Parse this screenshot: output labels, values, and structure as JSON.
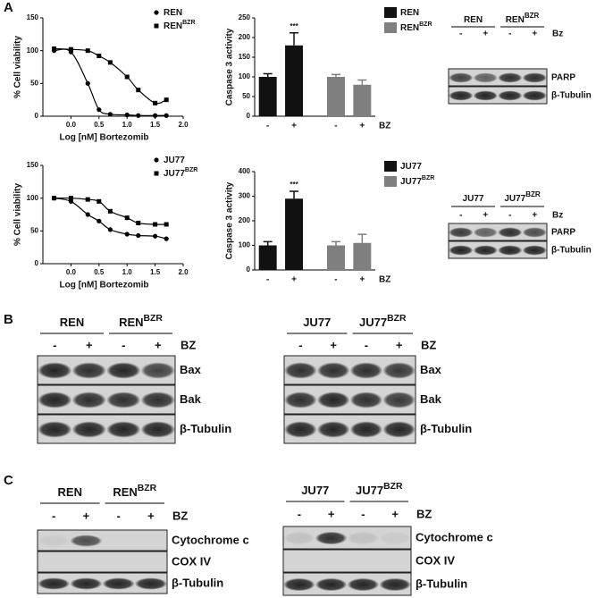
{
  "panel_labels": [
    "A",
    "B",
    "C"
  ],
  "chart_data": [
    {
      "type": "scatter",
      "fit": true,
      "xlabel": "Log [nM] Bortezomib",
      "ylabel": "% Cell viability",
      "xlim": [
        -0.5,
        2.0
      ],
      "xticks": [
        {
          "value": 0,
          "label": "0.0"
        },
        {
          "value": 0.5,
          "label": "0.5"
        },
        {
          "value": 1,
          "label": "1.0"
        },
        {
          "value": 1.5,
          "label": "1.5"
        },
        {
          "value": 2,
          "label": "2.0"
        }
      ],
      "ylim": [
        0,
        150
      ],
      "yticks": [
        0,
        50,
        100,
        150
      ],
      "x": [
        -0.3,
        0.0,
        0.3,
        0.5,
        0.7,
        1.0,
        1.2,
        1.5,
        1.7
      ],
      "series": [
        {
          "name": "REN",
          "marker": "circle",
          "color": "#000000",
          "values": [
            100,
            98,
            50,
            10,
            3,
            2,
            1,
            1,
            1
          ]
        },
        {
          "name": "REN",
          "superscript": "BZR",
          "marker": "square",
          "color": "#000000",
          "values": [
            103,
            102,
            100,
            92,
            82,
            60,
            40,
            20,
            25
          ]
        }
      ]
    },
    {
      "type": "bar",
      "ylabel": "Caspase 3 activity",
      "treatment_label": "BZ",
      "annotation": "***",
      "categories": [
        "-",
        "+",
        "-",
        "+"
      ],
      "ylim": [
        0,
        250
      ],
      "yticks": [
        0,
        50,
        100,
        150,
        200,
        250
      ],
      "series": [
        {
          "name": "REN",
          "color": "#111111",
          "values": [
            100,
            180,
            null,
            null
          ],
          "errors": [
            8,
            32,
            null,
            null
          ]
        },
        {
          "name": "REN",
          "superscript": "BZR",
          "color": "#7f7f7f",
          "values": [
            null,
            null,
            100,
            80
          ],
          "errors": [
            null,
            null,
            6,
            12
          ]
        }
      ]
    },
    {
      "type": "scatter",
      "fit": true,
      "xlabel": "Log [nM] Bortezomib",
      "ylabel": "% Cell viability",
      "xlim": [
        -0.5,
        2.0
      ],
      "xticks": [
        {
          "value": 0,
          "label": "0.0"
        },
        {
          "value": 0.5,
          "label": "0.5"
        },
        {
          "value": 1,
          "label": "1.0"
        },
        {
          "value": 1.5,
          "label": "1.5"
        },
        {
          "value": 2,
          "label": "2.0"
        }
      ],
      "ylim": [
        0,
        150
      ],
      "yticks": [
        0,
        50,
        100,
        150
      ],
      "x": [
        -0.3,
        0.0,
        0.3,
        0.5,
        0.7,
        1.0,
        1.2,
        1.5,
        1.7
      ],
      "series": [
        {
          "name": "JU77",
          "marker": "circle",
          "color": "#000000",
          "values": [
            100,
            95,
            75,
            65,
            52,
            45,
            43,
            42,
            38
          ]
        },
        {
          "name": "JU77",
          "superscript": "BZR",
          "marker": "square",
          "color": "#000000",
          "values": [
            100,
            100,
            98,
            95,
            80,
            70,
            62,
            60,
            60
          ]
        }
      ]
    },
    {
      "type": "bar",
      "ylabel": "Caspase 3 activity",
      "treatment_label": "BZ",
      "annotation": "***",
      "categories": [
        "-",
        "+",
        "-",
        "+"
      ],
      "ylim": [
        0,
        400
      ],
      "yticks": [
        0,
        100,
        200,
        300,
        400
      ],
      "series": [
        {
          "name": "JU77",
          "color": "#111111",
          "values": [
            100,
            290,
            null,
            null
          ],
          "errors": [
            15,
            30,
            null,
            null
          ]
        },
        {
          "name": "JU77",
          "superscript": "BZR",
          "color": "#7f7f7f",
          "values": [
            null,
            null,
            100,
            110
          ],
          "errors": [
            null,
            null,
            15,
            35
          ]
        }
      ]
    }
  ],
  "blots": [
    {
      "groups": [
        {
          "base": "REN"
        },
        {
          "base": "REN",
          "sup": "BZR"
        }
      ],
      "lanes": [
        "-",
        "+",
        "-",
        "+"
      ],
      "treatment": "Bz",
      "rows": [
        "PARP",
        "β-Tubulin"
      ]
    },
    {
      "groups": [
        {
          "base": "JU77"
        },
        {
          "base": "JU77",
          "sup": "BZR"
        }
      ],
      "lanes": [
        "-",
        "+",
        "-",
        "+"
      ],
      "treatment": "Bz",
      "rows": [
        "PARP",
        "β-Tubulin"
      ]
    },
    {
      "groups": [
        {
          "base": "REN"
        },
        {
          "base": "REN",
          "sup": "BZR"
        }
      ],
      "lanes": [
        "-",
        "+",
        "-",
        "+"
      ],
      "treatment": "BZ",
      "rows": [
        "Bax",
        "Bak",
        "β-Tubulin"
      ]
    },
    {
      "groups": [
        {
          "base": "JU77"
        },
        {
          "base": "JU77",
          "sup": "BZR"
        }
      ],
      "lanes": [
        "-",
        "+",
        "-",
        "+"
      ],
      "treatment": "BZ",
      "rows": [
        "Bax",
        "Bak",
        "β-Tubulin"
      ]
    },
    {
      "groups": [
        {
          "base": "REN"
        },
        {
          "base": "REN",
          "sup": "BZR"
        }
      ],
      "lanes": [
        "-",
        "+",
        "-",
        "+"
      ],
      "treatment": "BZ",
      "rows": [
        "Cytochrome c",
        "COX IV",
        "β-Tubulin"
      ]
    },
    {
      "groups": [
        {
          "base": "JU77"
        },
        {
          "base": "JU77",
          "sup": "BZR"
        }
      ],
      "lanes": [
        "-",
        "+",
        "-",
        "+"
      ],
      "treatment": "BZ",
      "rows": [
        "Cytochrome c",
        "COX IV",
        "β-Tubulin"
      ]
    }
  ]
}
